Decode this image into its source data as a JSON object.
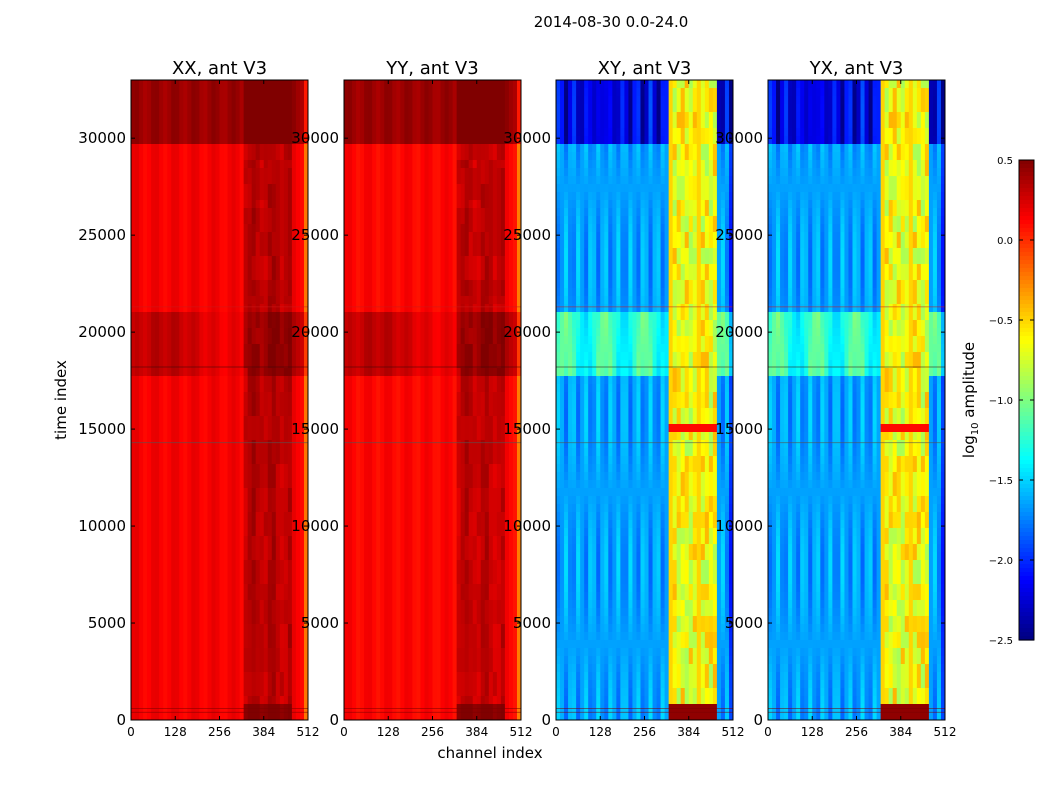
{
  "suptitle": "2014-08-30 0.0-24.0",
  "xlabel": "channel index",
  "ylabel": "time index",
  "chart_data": {
    "type": "heatmap",
    "x_range": [
      0,
      512
    ],
    "y_range": [
      0,
      33000
    ],
    "x_ticks": [
      "0",
      "128",
      "256",
      "384",
      "512"
    ],
    "y_ticks": [
      "0",
      "5000",
      "10000",
      "15000",
      "20000",
      "25000",
      "30000"
    ],
    "x_tick_values": [
      0,
      128,
      256,
      384,
      512
    ],
    "y_tick_values": [
      0,
      5000,
      10000,
      15000,
      20000,
      25000,
      30000
    ],
    "panels": [
      {
        "title": "XX, ant V3",
        "pol": "XX",
        "baseline": 0.15
      },
      {
        "title": "YY, ant V3",
        "pol": "YY",
        "baseline": 0.12
      },
      {
        "title": "XY, ant V3",
        "pol": "XY",
        "baseline": -1.65
      },
      {
        "title": "YX, ant V3",
        "pol": "YX",
        "baseline": -1.65
      }
    ],
    "colorbar": {
      "label": "log10 amplitude",
      "label_main": "log",
      "label_sub": "10",
      "label_rest": " amplitude",
      "range": [
        -2.5,
        0.5
      ],
      "ticks": [
        "0.5",
        "0.0",
        "−0.5",
        "−1.0",
        "−1.5",
        "−2.0",
        "−2.5"
      ],
      "tick_values": [
        0.5,
        0.0,
        -0.5,
        -1.0,
        -1.5,
        -2.0,
        -2.5
      ],
      "colormap": "jet"
    }
  }
}
